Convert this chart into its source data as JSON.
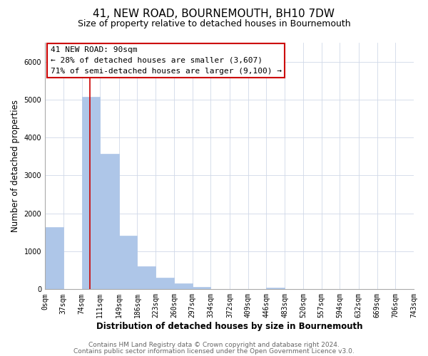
{
  "title": "41, NEW ROAD, BOURNEMOUTH, BH10 7DW",
  "subtitle": "Size of property relative to detached houses in Bournemouth",
  "xlabel": "Distribution of detached houses by size in Bournemouth",
  "ylabel": "Number of detached properties",
  "bar_edges": [
    0,
    37,
    74,
    111,
    149,
    186,
    223,
    260,
    297,
    334,
    372,
    409,
    446,
    483,
    520,
    557,
    594,
    632,
    669,
    706,
    743
  ],
  "bar_heights": [
    1630,
    0,
    5080,
    3580,
    1420,
    610,
    310,
    150,
    60,
    0,
    0,
    0,
    40,
    0,
    0,
    0,
    0,
    0,
    0,
    0
  ],
  "bar_color": "#aec6e8",
  "bar_edgecolor": "#aec6e8",
  "grid_color": "#d0d8e8",
  "background_color": "#ffffff",
  "vline_x": 90,
  "vline_color": "#cc0000",
  "annotation_box_text": "41 NEW ROAD: 90sqm\n← 28% of detached houses are smaller (3,607)\n71% of semi-detached houses are larger (9,100) →",
  "annotation_box_edgecolor": "#cc0000",
  "annotation_box_facecolor": "#ffffff",
  "ylim": [
    0,
    6500
  ],
  "xlim": [
    0,
    743
  ],
  "xtick_labels": [
    "0sqm",
    "37sqm",
    "74sqm",
    "111sqm",
    "149sqm",
    "186sqm",
    "223sqm",
    "260sqm",
    "297sqm",
    "334sqm",
    "372sqm",
    "409sqm",
    "446sqm",
    "483sqm",
    "520sqm",
    "557sqm",
    "594sqm",
    "632sqm",
    "669sqm",
    "706sqm",
    "743sqm"
  ],
  "xtick_positions": [
    0,
    37,
    74,
    111,
    149,
    186,
    223,
    260,
    297,
    334,
    372,
    409,
    446,
    483,
    520,
    557,
    594,
    632,
    669,
    706,
    743
  ],
  "footer_line1": "Contains HM Land Registry data © Crown copyright and database right 2024.",
  "footer_line2": "Contains public sector information licensed under the Open Government Licence v3.0.",
  "title_fontsize": 11,
  "subtitle_fontsize": 9,
  "axis_label_fontsize": 8.5,
  "tick_fontsize": 7,
  "annotation_fontsize": 8,
  "footer_fontsize": 6.5
}
